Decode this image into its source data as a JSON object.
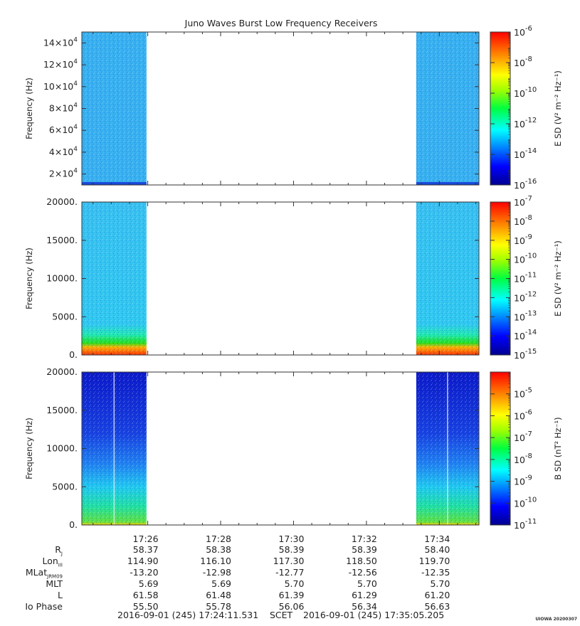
{
  "title": "Juno Waves Burst Low Frequency Receivers",
  "chart_data": [
    {
      "type": "heatmap",
      "panel": "top",
      "ylabel": "Frequency (Hz)",
      "yticks": [
        {
          "value": 20000,
          "mant": "2",
          "exp": "4"
        },
        {
          "value": 40000,
          "mant": "4",
          "exp": "4"
        },
        {
          "value": 60000,
          "mant": "6",
          "exp": "4"
        },
        {
          "value": 80000,
          "mant": "8",
          "exp": "4"
        },
        {
          "value": 100000,
          "mant": "10",
          "exp": "4"
        },
        {
          "value": 120000,
          "mant": "12",
          "exp": "4"
        },
        {
          "value": 140000,
          "mant": "14",
          "exp": "4"
        }
      ],
      "ylim": [
        10000,
        150000
      ],
      "colorbar": {
        "label": "E SD (V² m⁻² Hz⁻¹)",
        "scale": "log",
        "exp_range": [
          -16,
          -6
        ],
        "ticks": [
          "-6",
          "-8",
          "-10",
          "-12",
          "-14",
          "-16"
        ]
      },
      "data_intervals": [
        "17:24:11 – 17:25:58",
        "17:33:22 – 17:35:05"
      ]
    },
    {
      "type": "heatmap",
      "panel": "middle",
      "ylabel": "Frequency (Hz)",
      "yticks": [
        "0.",
        "5000.",
        "10000.",
        "15000.",
        "20000."
      ],
      "ylim": [
        0,
        20000
      ],
      "colorbar": {
        "label": "E SD (V² m⁻² Hz⁻¹)",
        "scale": "log",
        "exp_range": [
          -15,
          -7
        ],
        "ticks": [
          "-7",
          "-8",
          "-9",
          "-10",
          "-11",
          "-12",
          "-13",
          "-14",
          "-15"
        ]
      },
      "data_intervals": [
        "17:24:11 – 17:25:58",
        "17:33:22 – 17:35:05"
      ]
    },
    {
      "type": "heatmap",
      "panel": "bottom",
      "ylabel": "Frequency (Hz)",
      "yticks": [
        "0.",
        "5000.",
        "10000.",
        "15000.",
        "20000."
      ],
      "ylim": [
        0,
        20000
      ],
      "colorbar": {
        "label": "B SD (nT² Hz⁻¹)",
        "scale": "log",
        "exp_range": [
          -11,
          -4
        ],
        "ticks": [
          "-5",
          "-6",
          "-7",
          "-8",
          "-9",
          "-10",
          "-11"
        ]
      },
      "data_intervals": [
        "17:24:11 – 17:25:58",
        "17:33:22 – 17:35:05"
      ]
    }
  ],
  "x_axis": {
    "start": "17:24:11.531",
    "end": "17:35:05.205",
    "ticks": [
      "17:26",
      "17:28",
      "17:30",
      "17:32",
      "17:34"
    ]
  },
  "ephemeris": [
    {
      "label": "R",
      "sub": "J",
      "values": [
        "58.37",
        "58.38",
        "58.39",
        "58.39",
        "58.40"
      ]
    },
    {
      "label": "Lon",
      "sub": "III",
      "values": [
        "114.90",
        "116.10",
        "117.30",
        "118.50",
        "119.70"
      ]
    },
    {
      "label": "MLat",
      "sub": "JRM09",
      "values": [
        "-13.20",
        "-12.98",
        "-12.77",
        "-12.56",
        "-12.35"
      ]
    },
    {
      "label": "MLT",
      "sub": "",
      "values": [
        "5.69",
        "5.69",
        "5.70",
        "5.70",
        "5.70"
      ]
    },
    {
      "label": "L",
      "sub": "",
      "values": [
        "61.58",
        "61.48",
        "61.39",
        "61.29",
        "61.20"
      ]
    },
    {
      "label": "Io Phase",
      "sub": "",
      "values": [
        "55.50",
        "55.78",
        "56.06",
        "56.34",
        "56.63"
      ]
    }
  ],
  "footer": {
    "start": "2016-09-01 (245) 17:24:11.531",
    "frame": "SCET",
    "end": "2016-09-01 (245) 17:35:05.205"
  },
  "credit": "UIOWA 20200307"
}
